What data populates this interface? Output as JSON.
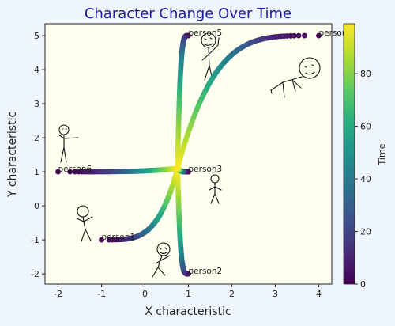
{
  "chart_data": {
    "type": "scatter",
    "title": "Character Change Over Time",
    "xlabel": "X characteristic",
    "ylabel": "Y characteristic",
    "xlim": [
      -2.3,
      4.3
    ],
    "ylim": [
      -2.3,
      5.35
    ],
    "xticks": [
      -2,
      -1,
      0,
      1,
      2,
      3,
      4
    ],
    "yticks": [
      -2,
      -1,
      0,
      1,
      2,
      3,
      4,
      5
    ],
    "center": [
      0.75,
      1.1
    ],
    "time_range": [
      0,
      99
    ],
    "points_per_path": 100,
    "colormap": "viridis",
    "colorbar": {
      "label": "Time",
      "ticks": [
        0,
        20,
        40,
        60,
        80
      ]
    },
    "background_color": "#fffff0",
    "figure_background": "#eef5fd",
    "annotations": [
      {
        "text": "person1",
        "x": -1,
        "y": -1
      },
      {
        "text": "person2",
        "x": 1,
        "y": -2
      },
      {
        "text": "person3",
        "x": 1,
        "y": 1
      },
      {
        "text": "person4",
        "x": 4,
        "y": 5
      },
      {
        "text": "person5",
        "x": 1,
        "y": 5
      },
      {
        "text": "person6",
        "x": -2,
        "y": 1
      }
    ],
    "series": [
      {
        "start": [
          -1,
          -1
        ]
      },
      {
        "start": [
          1,
          -2
        ]
      },
      {
        "start": [
          1,
          1
        ]
      },
      {
        "start": [
          4,
          5
        ]
      },
      {
        "start": [
          1,
          5
        ]
      },
      {
        "start": [
          -2,
          1
        ]
      }
    ],
    "grid": false
  }
}
